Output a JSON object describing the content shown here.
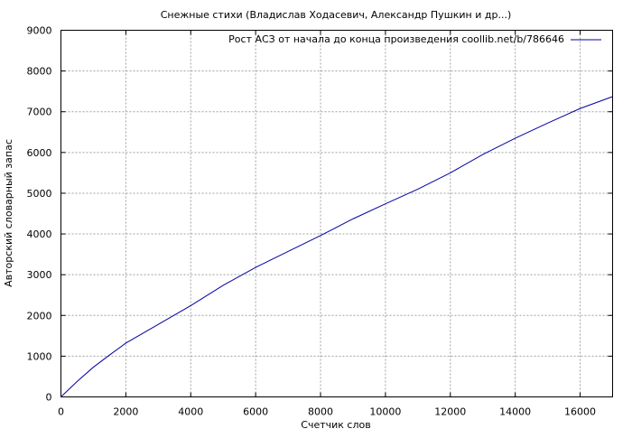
{
  "chart_data": {
    "type": "line",
    "title": "Снежные стихи (Владислав Ходасевич, Александр Пушкин и др...)",
    "xlabel": "Счетчик слов",
    "ylabel": "Авторский словарный запас",
    "xlim": [
      0,
      17000
    ],
    "ylim": [
      0,
      9000
    ],
    "xticks": [
      0,
      2000,
      4000,
      6000,
      8000,
      10000,
      12000,
      14000,
      16000
    ],
    "yticks": [
      0,
      1000,
      2000,
      3000,
      4000,
      5000,
      6000,
      7000,
      8000,
      9000
    ],
    "grid": true,
    "legend_position": "top-right",
    "series": [
      {
        "name": "Рост АСЗ от начала до конца произведения coollib.net/b/786646",
        "color": "#0000a0",
        "x": [
          0,
          500,
          1000,
          1500,
          2000,
          3000,
          4000,
          5000,
          6000,
          7000,
          8000,
          9000,
          10000,
          11000,
          12000,
          13000,
          14000,
          15000,
          16000,
          17000
        ],
        "y": [
          0,
          380,
          730,
          1030,
          1320,
          1780,
          2240,
          2740,
          3180,
          3570,
          3960,
          4370,
          4740,
          5100,
          5500,
          5950,
          6350,
          6720,
          7080,
          7370
        ]
      }
    ]
  }
}
